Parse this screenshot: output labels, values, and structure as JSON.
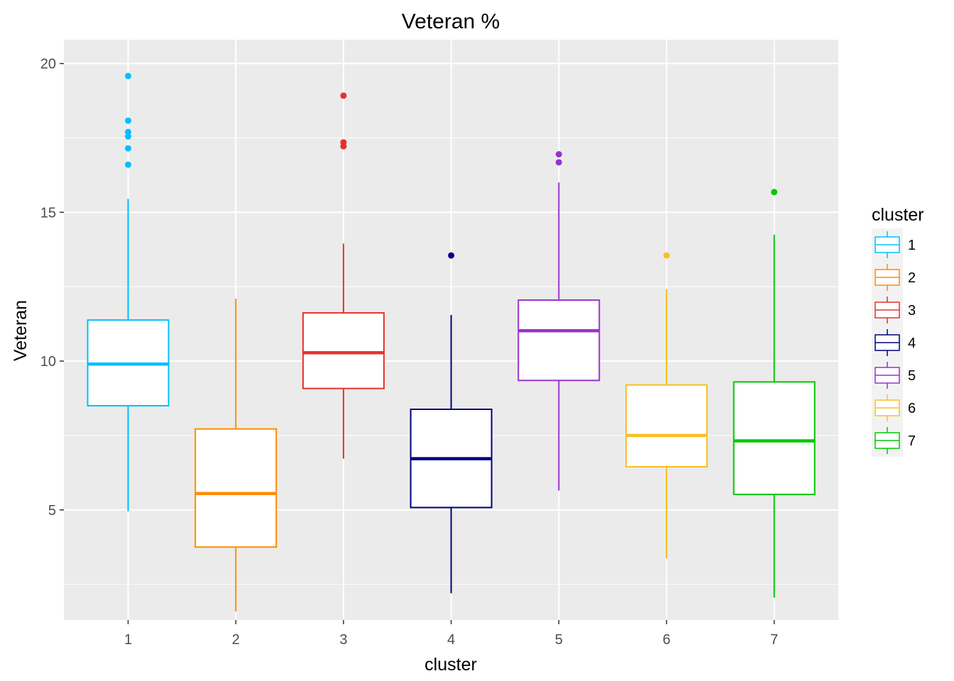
{
  "chart_data": {
    "type": "boxplot",
    "title": "Veteran %",
    "xlabel": "cluster",
    "ylabel": "Veteran",
    "categories": [
      "1",
      "2",
      "3",
      "4",
      "5",
      "6",
      "7"
    ],
    "ylim": [
      1.3,
      20.8
    ],
    "yticks": [
      5,
      10,
      15,
      20
    ],
    "grid": true,
    "legend": {
      "title": "cluster",
      "position": "right",
      "entries": [
        "1",
        "2",
        "3",
        "4",
        "5",
        "6",
        "7"
      ]
    },
    "series": [
      {
        "name": "1",
        "color": "#00bfff",
        "whisker_low": 4.95,
        "q1": 8.5,
        "median": 9.9,
        "q3": 11.38,
        "whisker_high": 15.45,
        "outliers": [
          16.6,
          17.15,
          17.55,
          17.7,
          18.08,
          19.58
        ]
      },
      {
        "name": "2",
        "color": "#ff8c00",
        "whisker_low": 1.58,
        "q1": 3.75,
        "median": 5.55,
        "q3": 7.72,
        "whisker_high": 12.1,
        "outliers": []
      },
      {
        "name": "3",
        "color": "#e8302e",
        "whisker_low": 6.72,
        "q1": 9.08,
        "median": 10.28,
        "q3": 11.62,
        "whisker_high": 13.95,
        "outliers": [
          17.22,
          17.35,
          18.92
        ]
      },
      {
        "name": "4",
        "color": "#000080",
        "whisker_low": 2.2,
        "q1": 5.08,
        "median": 6.72,
        "q3": 8.38,
        "whisker_high": 11.55,
        "outliers": [
          13.55
        ]
      },
      {
        "name": "5",
        "color": "#9932cc",
        "whisker_low": 5.65,
        "q1": 9.35,
        "median": 11.02,
        "q3": 12.05,
        "whisker_high": 16.0,
        "outliers": [
          16.68,
          16.95
        ]
      },
      {
        "name": "6",
        "color": "#fbbf24",
        "whisker_low": 3.38,
        "q1": 6.45,
        "median": 7.5,
        "q3": 9.2,
        "whisker_high": 12.42,
        "outliers": [
          13.55
        ]
      },
      {
        "name": "7",
        "color": "#00c800",
        "whisker_low": 2.05,
        "q1": 5.52,
        "median": 7.32,
        "q3": 9.3,
        "whisker_high": 14.25,
        "outliers": [
          15.68
        ]
      }
    ]
  }
}
